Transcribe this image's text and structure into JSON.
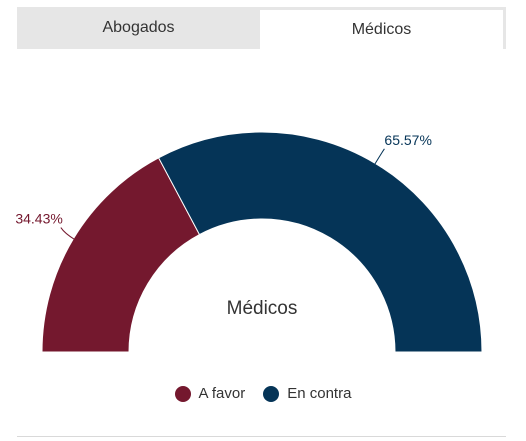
{
  "tabs": [
    {
      "label": "Abogados",
      "active": false
    },
    {
      "label": "Médicos",
      "active": true
    }
  ],
  "chart_data": {
    "type": "pie",
    "variant": "semi-donut",
    "center_label": "Médicos",
    "series": [
      {
        "name": "A favor",
        "value": 34.43,
        "label": "34.43%",
        "color": "#74182e"
      },
      {
        "name": "En contra",
        "value": 65.57,
        "label": "65.57%",
        "color": "#053457"
      }
    ],
    "legend": {
      "placement": "bottom-center"
    }
  }
}
